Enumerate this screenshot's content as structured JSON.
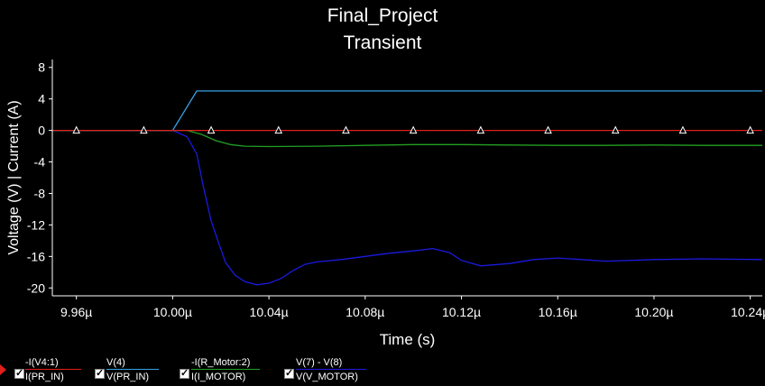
{
  "chart_data": {
    "type": "line",
    "title": "Final_Project",
    "subtitle": "Transient",
    "xlabel": "Time (s)",
    "ylabel": "Voltage (V) | Current (A)",
    "xlim": [
      9.95,
      10.245
    ],
    "ylim": [
      -21,
      9
    ],
    "xticks": [
      {
        "v": 9.96,
        "label": "9.96µ"
      },
      {
        "v": 10.0,
        "label": "10.00µ"
      },
      {
        "v": 10.04,
        "label": "10.04µ"
      },
      {
        "v": 10.08,
        "label": "10.08µ"
      },
      {
        "v": 10.12,
        "label": "10.12µ"
      },
      {
        "v": 10.16,
        "label": "10.16µ"
      },
      {
        "v": 10.2,
        "label": "10.20µ"
      },
      {
        "v": 10.24,
        "label": "10.24µ"
      }
    ],
    "yticks": [
      {
        "v": 8,
        "label": "8"
      },
      {
        "v": 4,
        "label": "4"
      },
      {
        "v": 0,
        "label": "0"
      },
      {
        "v": -4,
        "label": "-4"
      },
      {
        "v": -8,
        "label": "-8"
      },
      {
        "v": -12,
        "label": "-12"
      },
      {
        "v": -16,
        "label": "-16"
      },
      {
        "v": -20,
        "label": "-20"
      }
    ],
    "grid": false,
    "series": [
      {
        "name": "I(PR_IN)",
        "expr": "-I(V4:1)",
        "color": "#e0201c",
        "x": [
          9.95,
          10.245
        ],
        "y": [
          0,
          0
        ],
        "markers": [
          9.96,
          9.988,
          10.016,
          10.044,
          10.072,
          10.1,
          10.128,
          10.156,
          10.184,
          10.212,
          10.24
        ]
      },
      {
        "name": "V(PR_IN)",
        "expr": "V(4)",
        "color": "#36a3e6",
        "x": [
          9.95,
          10.0,
          10.01,
          10.245
        ],
        "y": [
          0,
          0,
          5,
          5
        ]
      },
      {
        "name": "I(I_MOTOR)",
        "expr": "-I(R_Motor:2)",
        "color": "#22a022",
        "x": [
          9.95,
          10.006,
          10.012,
          10.018,
          10.024,
          10.03,
          10.04,
          10.06,
          10.08,
          10.1,
          10.12,
          10.14,
          10.16,
          10.18,
          10.2,
          10.22,
          10.245
        ],
        "y": [
          0,
          0,
          -0.5,
          -1.3,
          -1.8,
          -2.0,
          -2.05,
          -2.0,
          -1.9,
          -1.8,
          -1.8,
          -1.85,
          -1.9,
          -1.9,
          -1.85,
          -1.9,
          -1.9
        ]
      },
      {
        "name": "V(V_MOTOR)",
        "expr": "V(7) - V(8)",
        "color": "#1a1ae0",
        "x": [
          9.95,
          10.0,
          10.006,
          10.01,
          10.013,
          10.016,
          10.019,
          10.022,
          10.026,
          10.03,
          10.035,
          10.04,
          10.045,
          10.05,
          10.055,
          10.06,
          10.07,
          10.08,
          10.09,
          10.1,
          10.108,
          10.115,
          10.12,
          10.128,
          10.14,
          10.15,
          10.16,
          10.17,
          10.18,
          10.2,
          10.22,
          10.245
        ],
        "y": [
          0,
          0,
          -0.8,
          -3.0,
          -7.5,
          -11.5,
          -14.2,
          -16.8,
          -18.4,
          -19.2,
          -19.6,
          -19.4,
          -18.8,
          -17.8,
          -17.0,
          -16.7,
          -16.4,
          -16.0,
          -15.6,
          -15.3,
          -15.0,
          -15.5,
          -16.5,
          -17.2,
          -16.9,
          -16.4,
          -16.2,
          -16.4,
          -16.6,
          -16.4,
          -16.3,
          -16.4
        ]
      }
    ]
  }
}
